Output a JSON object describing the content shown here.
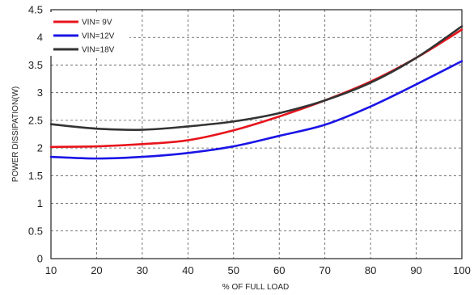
{
  "chart_data": {
    "type": "line",
    "xlabel": "% OF FULL LOAD",
    "ylabel": "POWER DISSIPATION(W)",
    "xlim": [
      10,
      100
    ],
    "ylim": [
      0,
      4.5
    ],
    "x_ticks": [
      "10",
      "20",
      "30",
      "40",
      "50",
      "60",
      "70",
      "80",
      "90",
      "100"
    ],
    "y_ticks": [
      "0",
      "0.5",
      "1",
      "1.5",
      "2",
      "2.5",
      "3",
      "3.5",
      "4",
      "4.5"
    ],
    "grid": true,
    "legend_position": "top-left",
    "series": [
      {
        "name": "VIN= 9V",
        "color": "#e8141c",
        "x": [
          10,
          20,
          30,
          40,
          50,
          60,
          70,
          80,
          90,
          100
        ],
        "y": [
          2.02,
          2.03,
          2.07,
          2.14,
          2.32,
          2.57,
          2.86,
          3.2,
          3.63,
          4.14
        ]
      },
      {
        "name": "VIN=12V",
        "color": "#1a14e6",
        "x": [
          10,
          20,
          30,
          40,
          50,
          60,
          70,
          80,
          90,
          100
        ],
        "y": [
          1.84,
          1.81,
          1.84,
          1.91,
          2.03,
          2.22,
          2.42,
          2.75,
          3.15,
          3.57
        ]
      },
      {
        "name": "VIN=18V",
        "color": "#333333",
        "x": [
          10,
          20,
          30,
          40,
          50,
          60,
          70,
          80,
          90,
          100
        ],
        "y": [
          2.43,
          2.35,
          2.33,
          2.39,
          2.48,
          2.63,
          2.86,
          3.18,
          3.63,
          4.2
        ]
      }
    ]
  }
}
